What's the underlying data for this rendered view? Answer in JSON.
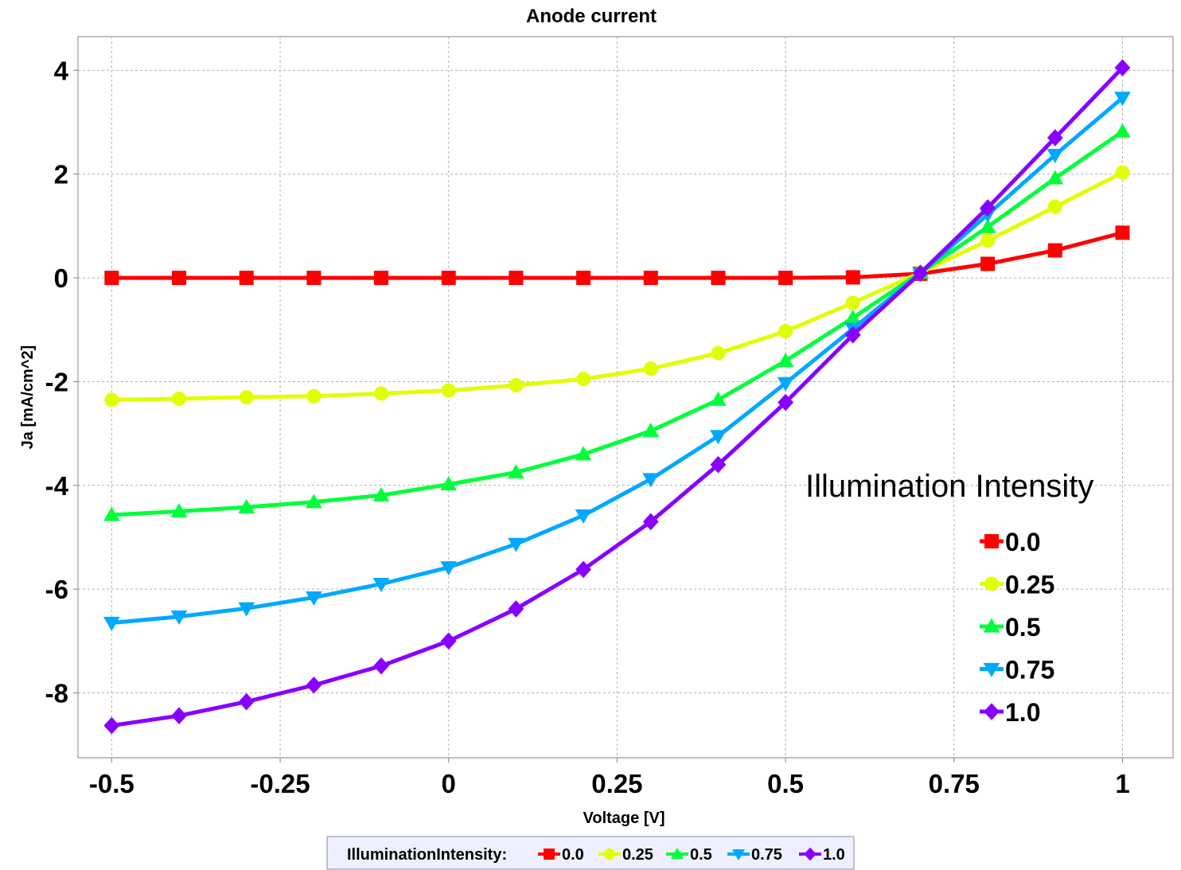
{
  "chart_data": {
    "type": "line",
    "title": "Anode current",
    "xlabel": "Voltage [V]",
    "ylabel": "Ja [mA/cm^2]",
    "xlim": [
      -0.55,
      1.075
    ],
    "ylim": [
      -9.25,
      4.65
    ],
    "x_ticks": [
      -0.5,
      -0.25,
      0,
      0.25,
      0.5,
      0.75,
      1
    ],
    "x_tick_labels": [
      "-0.5",
      "-0.25",
      "0",
      "0.25",
      "0.5",
      "0.75",
      "1"
    ],
    "y_ticks": [
      -8,
      -6,
      -4,
      -2,
      0,
      2,
      4
    ],
    "y_tick_labels": [
      "-8",
      "-6",
      "-4",
      "-2",
      "0",
      "2",
      "4"
    ],
    "grid": true,
    "x": [
      -0.5,
      -0.4,
      -0.3,
      -0.2,
      -0.1,
      0,
      0.1,
      0.2,
      0.3,
      0.4,
      0.5,
      0.6,
      0.7,
      0.8,
      0.9,
      1.0
    ],
    "legend_title": "IlluminationIntensity:",
    "legend_position": "bottom",
    "inline_legend_title": "Illumination Intensity",
    "inline_legend_position": "bottom-right",
    "series": [
      {
        "name": "0.0",
        "color": "#ff0000",
        "marker": "square",
        "values": [
          0,
          0,
          0,
          0,
          0,
          0,
          0,
          0,
          0,
          0,
          0,
          0.01,
          0.08,
          0.27,
          0.53,
          0.87
        ]
      },
      {
        "name": "0.25",
        "color": "#e0ff00",
        "marker": "circle",
        "values": [
          -2.35,
          -2.33,
          -2.3,
          -2.28,
          -2.23,
          -2.17,
          -2.07,
          -1.95,
          -1.75,
          -1.45,
          -1.03,
          -0.48,
          0.1,
          0.72,
          1.37,
          2.03
        ]
      },
      {
        "name": "0.5",
        "color": "#00ff3a",
        "marker": "triangle-up",
        "values": [
          -4.57,
          -4.5,
          -4.42,
          -4.32,
          -4.19,
          -3.98,
          -3.75,
          -3.4,
          -2.95,
          -2.35,
          -1.6,
          -0.77,
          0.1,
          0.98,
          1.92,
          2.82
        ]
      },
      {
        "name": "0.75",
        "color": "#00a8ff",
        "marker": "triangle-down",
        "values": [
          -6.65,
          -6.53,
          -6.37,
          -6.16,
          -5.9,
          -5.58,
          -5.13,
          -4.58,
          -3.88,
          -3.05,
          -2.03,
          -0.98,
          0.09,
          1.22,
          2.37,
          3.47
        ]
      },
      {
        "name": "1.0",
        "color": "#8800ff",
        "marker": "diamond",
        "values": [
          -8.63,
          -8.44,
          -8.17,
          -7.85,
          -7.48,
          -7.0,
          -6.38,
          -5.62,
          -4.7,
          -3.6,
          -2.4,
          -1.1,
          0.09,
          1.35,
          2.7,
          4.05
        ]
      }
    ]
  }
}
